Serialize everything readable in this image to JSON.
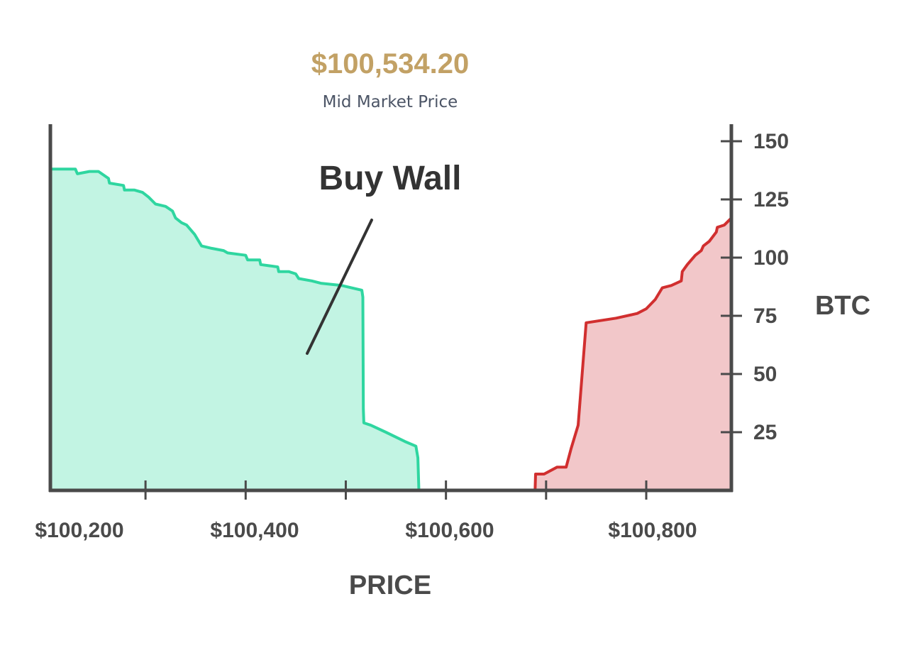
{
  "header": {
    "mid_price": "$100,534.20",
    "mid_price_label": "Mid Market Price"
  },
  "chart_data": {
    "type": "area",
    "xlabel": "PRICE",
    "ylabel": "BTC",
    "xlim": [
      100105,
      100785
    ],
    "ylim": [
      0,
      157
    ],
    "x_ticks": [
      {
        "value": 100200,
        "label": "$100,200"
      },
      {
        "value": 100300,
        "label": ""
      },
      {
        "value": 100400,
        "label": "$100,400"
      },
      {
        "value": 100500,
        "label": ""
      },
      {
        "value": 100600,
        "label": "$100,600"
      },
      {
        "value": 100700,
        "label": ""
      },
      {
        "value": 100800,
        "label": "$100,800"
      }
    ],
    "y_ticks": [
      {
        "value": 25,
        "label": "25"
      },
      {
        "value": 50,
        "label": "50"
      },
      {
        "value": 75,
        "label": "75"
      },
      {
        "value": 100,
        "label": "100"
      },
      {
        "value": 125,
        "label": "125"
      },
      {
        "value": 150,
        "label": "150"
      }
    ],
    "annotation": {
      "text": "Buy Wall"
    },
    "colors": {
      "bids_line": "#2fd6a0",
      "bids_fill": "#c2f4e3",
      "asks_line": "#d12f2f",
      "asks_fill": "#f2c7c9",
      "axis": "#4a4a4a",
      "mid_price": "#c2a165"
    },
    "series": [
      {
        "side": "bids",
        "x": [
          100105,
          100130,
          100132,
          100144,
          100153,
          100163,
          100164,
          100178,
          100179,
          100189,
          100197,
          100203,
          100210,
          100220,
          100227,
          100230,
          100236,
          100241,
          100249,
          100256,
          100266,
          100278,
          100282,
          100300,
          100302,
          100314,
          100315,
          100332,
          100333,
          100343,
          100350,
          100353,
          100366,
          100375,
          100396,
          100416,
          100417,
          100417.5,
          100418,
          100425,
          100440,
          100459,
          100470,
          100472,
          100473
        ],
        "y": [
          138,
          138,
          136,
          137,
          137,
          134,
          132,
          131,
          129,
          129,
          128,
          126,
          123,
          122,
          120,
          117,
          115,
          114,
          110,
          105,
          104,
          103,
          102,
          101,
          99,
          99,
          97,
          96,
          94,
          94,
          93,
          91,
          90,
          89,
          88,
          86,
          83,
          35,
          29,
          28,
          25,
          21,
          19,
          14,
          0
        ]
      },
      {
        "side": "asks",
        "x": [
          100589,
          100589.5,
          100598,
          100611,
          100620,
          100625,
          100632,
          100640,
          100670,
          100691,
          100700,
          100709,
          100716,
          100725,
          100730,
          100735,
          100736,
          100741,
          100749,
          100755,
          100757,
          100763,
          100770,
          100771,
          100778,
          100785
        ],
        "y": [
          0,
          7,
          7,
          10,
          10,
          18,
          28,
          72,
          74,
          76,
          78,
          82,
          87,
          88,
          89,
          90,
          94,
          97,
          101,
          103,
          105,
          107,
          111,
          113,
          114,
          117
        ]
      }
    ]
  }
}
